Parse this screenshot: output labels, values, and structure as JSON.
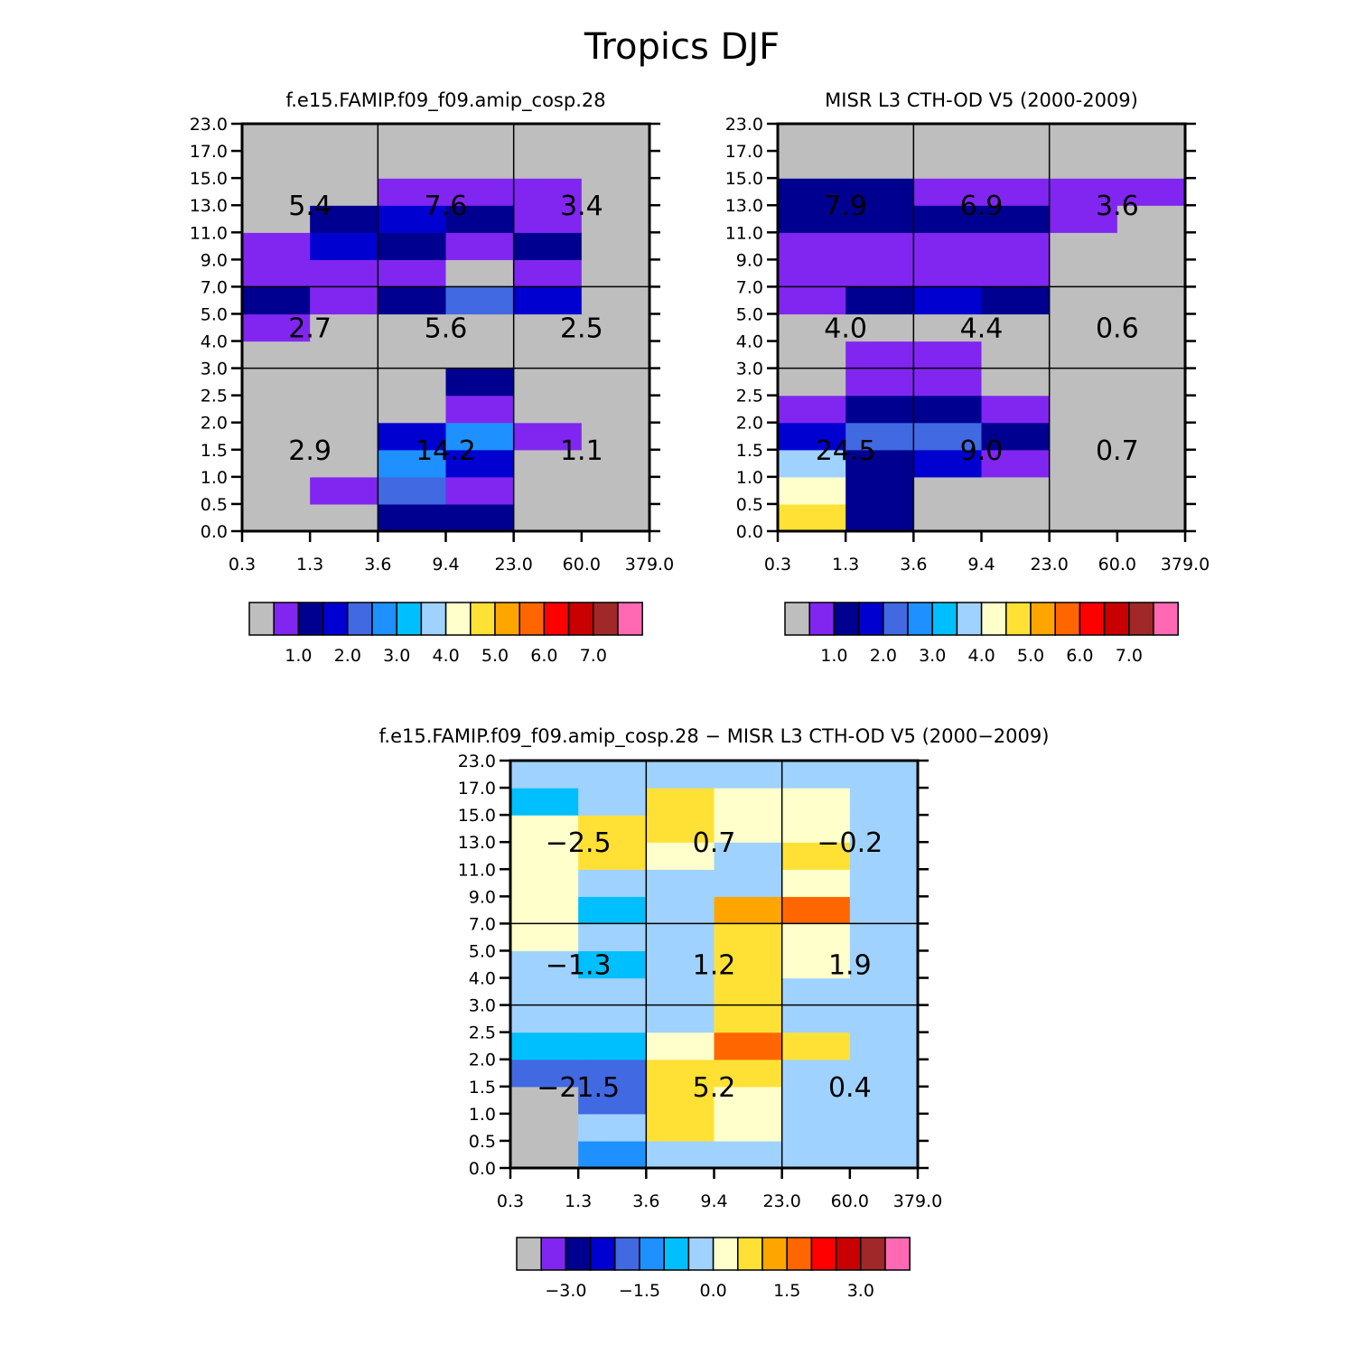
{
  "page_title": "Tropics DJF",
  "palette": [
    "#bebebe",
    "#8126f0",
    "#000090",
    "#0000d0",
    "#4169e1",
    "#1e90ff",
    "#00bfff",
    "#a0d2ff",
    "#ffffcc",
    "#ffe135",
    "#ffa500",
    "#ff6600",
    "#ff0000",
    "#c80000",
    "#a02828",
    "#ff69b4"
  ],
  "x_ticks": [
    "0.3",
    "1.3",
    "3.6",
    "9.4",
    "23.0",
    "60.0",
    "379.0"
  ],
  "y_ticks": [
    "0.0",
    "0.5",
    "1.0",
    "1.5",
    "2.0",
    "2.5",
    "3.0",
    "4.0",
    "5.0",
    "7.0",
    "9.0",
    "11.0",
    "13.0",
    "15.0",
    "17.0",
    "23.0"
  ],
  "colorbars": {
    "abs": {
      "labels": [
        "1.0",
        "2.0",
        "3.0",
        "4.0",
        "5.0",
        "6.0",
        "7.0"
      ]
    },
    "diff": {
      "labels": [
        "−3.0",
        "−1.5",
        "0.0",
        "1.5",
        "3.0"
      ]
    }
  },
  "chart_data": [
    {
      "type": "heatmap",
      "title": "f.e15.FAMIP.f09_f09.amip_cosp.28",
      "xlabel": "",
      "ylabel": "",
      "rows_bottom_to_top": [
        [
          0,
          0,
          2,
          2,
          0,
          0
        ],
        [
          0,
          1,
          4,
          1,
          0,
          0
        ],
        [
          0,
          0,
          5,
          3,
          0,
          0
        ],
        [
          0,
          0,
          3,
          5,
          1,
          0
        ],
        [
          0,
          0,
          0,
          1,
          0,
          0
        ],
        [
          0,
          0,
          0,
          2,
          0,
          0
        ],
        [
          0,
          0,
          0,
          0,
          0,
          0
        ],
        [
          1,
          0,
          0,
          0,
          0,
          0
        ],
        [
          2,
          1,
          2,
          4,
          3,
          0
        ],
        [
          1,
          1,
          1,
          0,
          1,
          0
        ],
        [
          1,
          3,
          2,
          1,
          2,
          0
        ],
        [
          0,
          2,
          3,
          2,
          1,
          0
        ],
        [
          0,
          0,
          1,
          1,
          1,
          0
        ],
        [
          0,
          0,
          0,
          0,
          0,
          0
        ],
        [
          0,
          0,
          0,
          0,
          0,
          0
        ]
      ],
      "region_values": [
        {
          "label": "2.9",
          "col": 1,
          "row": 0
        },
        {
          "label": "14.2",
          "col": 3,
          "row": 0
        },
        {
          "label": "1.1",
          "col": 5,
          "row": 0
        },
        {
          "label": "2.7",
          "col": 1,
          "row": 1
        },
        {
          "label": "5.6",
          "col": 3,
          "row": 1
        },
        {
          "label": "2.5",
          "col": 5,
          "row": 1
        },
        {
          "label": "5.4",
          "col": 1,
          "row": 2
        },
        {
          "label": "7.6",
          "col": 3,
          "row": 2
        },
        {
          "label": "3.4",
          "col": 5,
          "row": 2
        }
      ]
    },
    {
      "type": "heatmap",
      "title": "MISR L3 CTH-OD V5 (2000-2009)",
      "xlabel": "",
      "ylabel": "",
      "rows_bottom_to_top": [
        [
          9,
          2,
          0,
          0,
          0,
          0
        ],
        [
          8,
          2,
          0,
          0,
          0,
          0
        ],
        [
          7,
          2,
          3,
          1,
          0,
          0
        ],
        [
          3,
          4,
          4,
          2,
          0,
          0
        ],
        [
          1,
          2,
          2,
          1,
          0,
          0
        ],
        [
          0,
          1,
          1,
          0,
          0,
          0
        ],
        [
          0,
          1,
          1,
          0,
          0,
          0
        ],
        [
          0,
          0,
          0,
          0,
          0,
          0
        ],
        [
          1,
          2,
          3,
          2,
          0,
          0
        ],
        [
          1,
          1,
          1,
          1,
          0,
          0
        ],
        [
          1,
          1,
          1,
          1,
          0,
          0
        ],
        [
          2,
          2,
          2,
          2,
          1,
          0
        ],
        [
          2,
          2,
          1,
          1,
          1,
          1
        ],
        [
          0,
          0,
          0,
          0,
          0,
          0
        ],
        [
          0,
          0,
          0,
          0,
          0,
          0
        ]
      ],
      "region_values": [
        {
          "label": "24.5",
          "col": 1,
          "row": 0
        },
        {
          "label": "9.0",
          "col": 3,
          "row": 0
        },
        {
          "label": "0.7",
          "col": 5,
          "row": 0
        },
        {
          "label": "4.0",
          "col": 1,
          "row": 1
        },
        {
          "label": "4.4",
          "col": 3,
          "row": 1
        },
        {
          "label": "0.6",
          "col": 5,
          "row": 1
        },
        {
          "label": "7.9",
          "col": 1,
          "row": 2
        },
        {
          "label": "6.9",
          "col": 3,
          "row": 2
        },
        {
          "label": "3.6",
          "col": 5,
          "row": 2
        }
      ]
    },
    {
      "type": "heatmap",
      "title": "f.e15.FAMIP.f09_f09.amip_cosp.28 − MISR L3 CTH-OD V5 (2000−2009)",
      "xlabel": "",
      "ylabel": "",
      "rows_bottom_to_top": [
        [
          0,
          5,
          7,
          7,
          7,
          7
        ],
        [
          0,
          7,
          9,
          8,
          7,
          7
        ],
        [
          0,
          4,
          9,
          8,
          7,
          7
        ],
        [
          4,
          4,
          9,
          9,
          7,
          7
        ],
        [
          6,
          6,
          8,
          11,
          9,
          7
        ],
        [
          7,
          7,
          7,
          9,
          7,
          7
        ],
        [
          7,
          7,
          7,
          9,
          7,
          7
        ],
        [
          7,
          6,
          7,
          9,
          8,
          7
        ],
        [
          8,
          7,
          7,
          9,
          8,
          7
        ],
        [
          8,
          6,
          7,
          10,
          11,
          7
        ],
        [
          8,
          7,
          7,
          7,
          8,
          7
        ],
        [
          8,
          9,
          8,
          7,
          9,
          7
        ],
        [
          8,
          9,
          9,
          8,
          8,
          7
        ],
        [
          6,
          7,
          9,
          8,
          8,
          7
        ],
        [
          7,
          7,
          7,
          7,
          7,
          7
        ]
      ],
      "region_values": [
        {
          "label": "−21.5",
          "col": 1,
          "row": 0
        },
        {
          "label": "5.2",
          "col": 3,
          "row": 0
        },
        {
          "label": "0.4",
          "col": 5,
          "row": 0
        },
        {
          "label": "−1.3",
          "col": 1,
          "row": 1
        },
        {
          "label": "1.2",
          "col": 3,
          "row": 1
        },
        {
          "label": "1.9",
          "col": 5,
          "row": 1
        },
        {
          "label": "−2.5",
          "col": 1,
          "row": 2
        },
        {
          "label": "0.7",
          "col": 3,
          "row": 2
        },
        {
          "label": "−0.2",
          "col": 5,
          "row": 2
        }
      ]
    }
  ]
}
